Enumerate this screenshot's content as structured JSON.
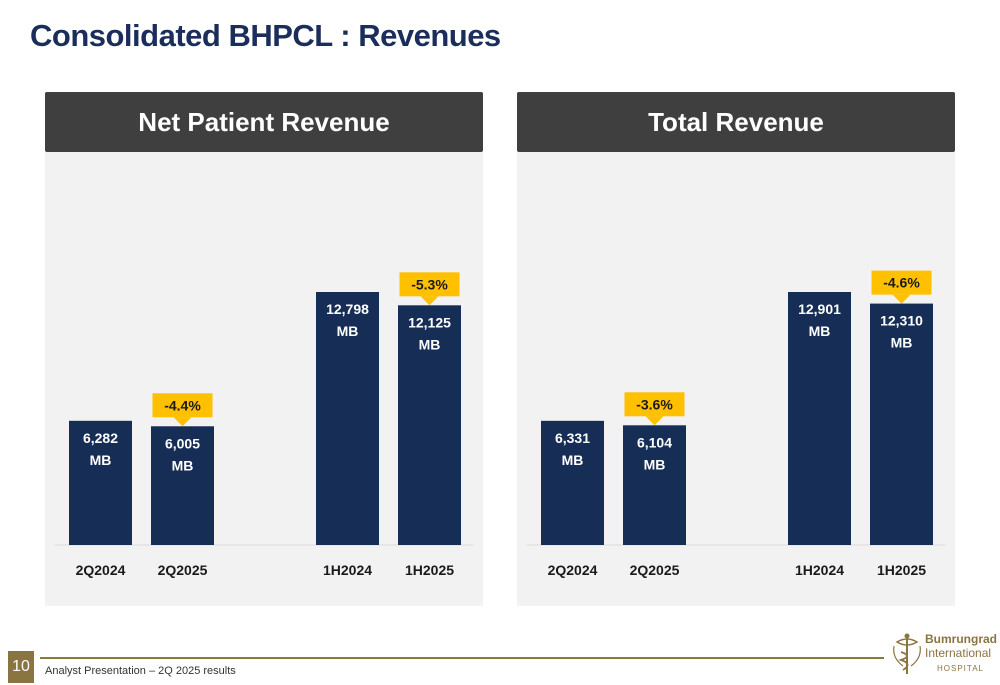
{
  "page": {
    "title": "Consolidated BHPCL : Revenues",
    "page_number": "10",
    "footer": "Analyst Presentation – 2Q 2025 results",
    "logo": {
      "name": "Bumrungrad",
      "sub": "International",
      "hospital": "HOSPITAL"
    }
  },
  "colors": {
    "bar": "#162e55",
    "highlight": "#ffc000",
    "header_bg": "#3f3f3f",
    "panel_bg": "#f2f2f2",
    "title": "#1b2d5b"
  },
  "chart_data": [
    {
      "type": "bar",
      "title": "Net Patient Revenue",
      "categories": [
        "2Q2024",
        "2Q2025",
        "1H2024",
        "1H2025"
      ],
      "values": [
        6282,
        6005,
        12798,
        12125
      ],
      "value_labels": [
        "6,282",
        "6,005",
        "12,798",
        "12,125"
      ],
      "unit": "MB",
      "changes": [
        {
          "category": "2Q2025",
          "label": "-4.4%"
        },
        {
          "category": "1H2025",
          "label": "-5.3%"
        }
      ]
    },
    {
      "type": "bar",
      "title": "Total Revenue",
      "categories": [
        "2Q2024",
        "2Q2025",
        "1H2024",
        "1H2025"
      ],
      "values": [
        6331,
        6104,
        12901,
        12310
      ],
      "value_labels": [
        "6,331",
        "6,104",
        "12,901",
        "12,310"
      ],
      "unit": "MB",
      "changes": [
        {
          "category": "2Q2025",
          "label": "-3.6%"
        },
        {
          "category": "1H2025",
          "label": "-4.6%"
        }
      ]
    }
  ]
}
